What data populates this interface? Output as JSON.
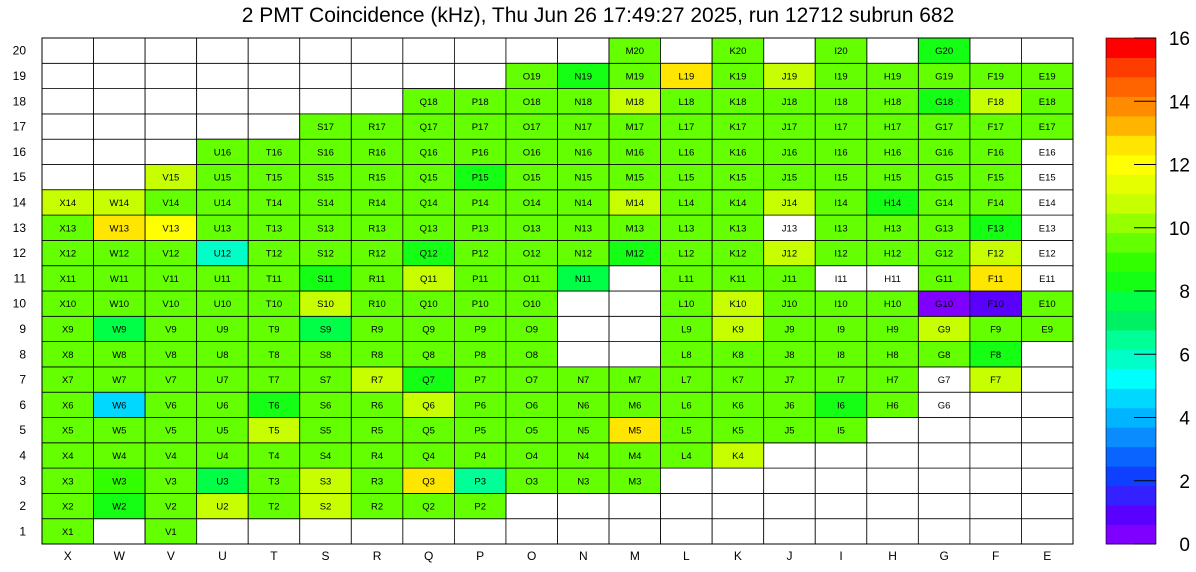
{
  "chart_data": {
    "type": "heatmap",
    "title": "2 PMT Coincidence (kHz), Thu Jun 26 17:49:27 2025, run 12712 subrun 682",
    "xlabel": "",
    "ylabel": "",
    "x_categories": [
      "X",
      "W",
      "V",
      "U",
      "T",
      "S",
      "R",
      "Q",
      "P",
      "O",
      "N",
      "M",
      "L",
      "K",
      "J",
      "I",
      "H",
      "G",
      "F",
      "E"
    ],
    "y_categories": [
      "1",
      "2",
      "3",
      "4",
      "5",
      "6",
      "7",
      "8",
      "9",
      "10",
      "11",
      "12",
      "13",
      "14",
      "15",
      "16",
      "17",
      "18",
      "19",
      "20"
    ],
    "zlim": [
      0,
      16
    ],
    "colorbar_ticks": [
      "0",
      "2",
      "4",
      "6",
      "8",
      "10",
      "12",
      "14",
      "16"
    ],
    "colorbar_colors": [
      "#7f00ff",
      "#5a00ff",
      "#3520ff",
      "#1040ff",
      "#0a64ff",
      "#0a8cff",
      "#00b4ff",
      "#00d8ff",
      "#00ffff",
      "#00ffc8",
      "#00ff96",
      "#00f064",
      "#00ff46",
      "#14ff14",
      "#32ff00",
      "#64ff00",
      "#96ff00",
      "#c8ff00",
      "#e6ff00",
      "#ffff00",
      "#ffe600",
      "#ffb400",
      "#ff8c00",
      "#ff6400",
      "#ff3c00",
      "#ff0000"
    ],
    "cells": [
      [
        "X1",
        1,
        9.5
      ],
      [
        "V1",
        1,
        9.5
      ],
      [
        "X2",
        2,
        9.5
      ],
      [
        "W2",
        2,
        8.2
      ],
      [
        "V2",
        2,
        9.5
      ],
      [
        "U2",
        2,
        10.7
      ],
      [
        "T2",
        2,
        9.5
      ],
      [
        "S2",
        2,
        10.7
      ],
      [
        "R2",
        2,
        9.5
      ],
      [
        "Q2",
        2,
        9.5
      ],
      [
        "P2",
        2,
        9.5
      ],
      [
        "X3",
        3,
        9.5
      ],
      [
        "W3",
        3,
        9
      ],
      [
        "V3",
        3,
        9.5
      ],
      [
        "U3",
        3,
        7.8
      ],
      [
        "T3",
        3,
        9.5
      ],
      [
        "S3",
        3,
        10.7
      ],
      [
        "R3",
        3,
        9.5
      ],
      [
        "Q3",
        3,
        12.5
      ],
      [
        "P3",
        3,
        6.6
      ],
      [
        "O3",
        3,
        9.5
      ],
      [
        "N3",
        3,
        9.5
      ],
      [
        "M3",
        3,
        9.5
      ],
      [
        "X4",
        4,
        9.5
      ],
      [
        "W4",
        4,
        9.5
      ],
      [
        "V4",
        4,
        9.5
      ],
      [
        "U4",
        4,
        9.5
      ],
      [
        "T4",
        4,
        9.5
      ],
      [
        "S4",
        4,
        9.5
      ],
      [
        "R4",
        4,
        9.5
      ],
      [
        "Q4",
        4,
        9.5
      ],
      [
        "P4",
        4,
        9.5
      ],
      [
        "O4",
        4,
        9.5
      ],
      [
        "N4",
        4,
        9.5
      ],
      [
        "M4",
        4,
        9.5
      ],
      [
        "L4",
        4,
        9.5
      ],
      [
        "K4",
        4,
        10.5
      ],
      [
        "X5",
        5,
        9.5
      ],
      [
        "W5",
        5,
        9.5
      ],
      [
        "V5",
        5,
        9.5
      ],
      [
        "U5",
        5,
        9.5
      ],
      [
        "T5",
        5,
        10.5
      ],
      [
        "S5",
        5,
        9.5
      ],
      [
        "R5",
        5,
        9.5
      ],
      [
        "Q5",
        5,
        9.5
      ],
      [
        "P5",
        5,
        9.5
      ],
      [
        "O5",
        5,
        9.5
      ],
      [
        "N5",
        5,
        9.5
      ],
      [
        "M5",
        5,
        12.8
      ],
      [
        "L5",
        5,
        9.5
      ],
      [
        "K5",
        5,
        9.5
      ],
      [
        "J5",
        5,
        9.5
      ],
      [
        "I5",
        5,
        9.5
      ],
      [
        "X6",
        6,
        9.5
      ],
      [
        "W6",
        6,
        4.5
      ],
      [
        "V6",
        6,
        9.5
      ],
      [
        "U6",
        6,
        9.5
      ],
      [
        "T6",
        6,
        8.2
      ],
      [
        "S6",
        6,
        9.5
      ],
      [
        "R6",
        6,
        9.5
      ],
      [
        "Q6",
        6,
        10.5
      ],
      [
        "P6",
        6,
        9.5
      ],
      [
        "O6",
        6,
        9.5
      ],
      [
        "N6",
        6,
        9.5
      ],
      [
        "M6",
        6,
        9.5
      ],
      [
        "L6",
        6,
        9.5
      ],
      [
        "K6",
        6,
        9.5
      ],
      [
        "J6",
        6,
        9.5
      ],
      [
        "I6",
        6,
        8.6
      ],
      [
        "H6",
        6,
        9.5
      ],
      [
        "G6",
        6,
        null
      ],
      [
        "X7",
        7,
        9.5
      ],
      [
        "W7",
        7,
        9.5
      ],
      [
        "V7",
        7,
        9.5
      ],
      [
        "U7",
        7,
        9.5
      ],
      [
        "T7",
        7,
        9.5
      ],
      [
        "S7",
        7,
        9.5
      ],
      [
        "R7",
        7,
        10.5
      ],
      [
        "Q7",
        7,
        8.6
      ],
      [
        "P7",
        7,
        9.5
      ],
      [
        "O7",
        7,
        9.5
      ],
      [
        "N7",
        7,
        9.5
      ],
      [
        "M7",
        7,
        9.5
      ],
      [
        "L7",
        7,
        9.5
      ],
      [
        "K7",
        7,
        9.5
      ],
      [
        "J7",
        7,
        9.5
      ],
      [
        "I7",
        7,
        9.5
      ],
      [
        "H7",
        7,
        9.5
      ],
      [
        "G7",
        7,
        null
      ],
      [
        "F7",
        7,
        10.5
      ],
      [
        "X8",
        8,
        9.5
      ],
      [
        "W8",
        8,
        9.5
      ],
      [
        "V8",
        8,
        9.5
      ],
      [
        "U8",
        8,
        9.5
      ],
      [
        "T8",
        8,
        9.5
      ],
      [
        "S8",
        8,
        9.5
      ],
      [
        "R8",
        8,
        9.5
      ],
      [
        "Q8",
        8,
        9.5
      ],
      [
        "P8",
        8,
        9.5
      ],
      [
        "O8",
        8,
        9.5
      ],
      [
        "L8",
        8,
        9.5
      ],
      [
        "K8",
        8,
        9.5
      ],
      [
        "J8",
        8,
        9.5
      ],
      [
        "I8",
        8,
        9.5
      ],
      [
        "H8",
        8,
        9.5
      ],
      [
        "G8",
        8,
        9.5
      ],
      [
        "F8",
        8,
        8.2
      ],
      [
        "X9",
        9,
        9.5
      ],
      [
        "W9",
        9,
        7.4
      ],
      [
        "V9",
        9,
        9.5
      ],
      [
        "U9",
        9,
        9.5
      ],
      [
        "T9",
        9,
        9.5
      ],
      [
        "S9",
        9,
        7.4
      ],
      [
        "R9",
        9,
        9.5
      ],
      [
        "Q9",
        9,
        9.5
      ],
      [
        "P9",
        9,
        9.5
      ],
      [
        "O9",
        9,
        9.5
      ],
      [
        "L9",
        9,
        9.5
      ],
      [
        "K9",
        9,
        10.5
      ],
      [
        "J9",
        9,
        9.5
      ],
      [
        "I9",
        9,
        9.5
      ],
      [
        "H9",
        9,
        9.5
      ],
      [
        "G9",
        9,
        10.5
      ],
      [
        "F9",
        9,
        9.5
      ],
      [
        "E9",
        9,
        9.5
      ],
      [
        "X10",
        10,
        9.5
      ],
      [
        "W10",
        10,
        9.5
      ],
      [
        "V10",
        10,
        9.5
      ],
      [
        "U10",
        10,
        9.5
      ],
      [
        "T10",
        10,
        9.5
      ],
      [
        "S10",
        10,
        10.5
      ],
      [
        "R10",
        10,
        9.5
      ],
      [
        "Q10",
        10,
        9.5
      ],
      [
        "P10",
        10,
        9.5
      ],
      [
        "O10",
        10,
        9.5
      ],
      [
        "L10",
        10,
        9.5
      ],
      [
        "K10",
        10,
        10.5
      ],
      [
        "J10",
        10,
        9.5
      ],
      [
        "I10",
        10,
        9.5
      ],
      [
        "H10",
        10,
        9.5
      ],
      [
        "G10",
        10,
        0.5
      ],
      [
        "F10",
        10,
        0.7
      ],
      [
        "E10",
        10,
        9.5
      ],
      [
        "X11",
        11,
        9.5
      ],
      [
        "W11",
        11,
        9.5
      ],
      [
        "V11",
        11,
        9.5
      ],
      [
        "U11",
        11,
        9.5
      ],
      [
        "T11",
        11,
        9.5
      ],
      [
        "S11",
        11,
        8.6
      ],
      [
        "R11",
        11,
        9.5
      ],
      [
        "Q11",
        11,
        11
      ],
      [
        "P11",
        11,
        9.5
      ],
      [
        "O11",
        11,
        9.5
      ],
      [
        "N11",
        11,
        7.6
      ],
      [
        "L11",
        11,
        9.5
      ],
      [
        "K11",
        11,
        9.5
      ],
      [
        "J11",
        11,
        9.5
      ],
      [
        "I11",
        11,
        null
      ],
      [
        "H11",
        11,
        null
      ],
      [
        "G11",
        11,
        9.5
      ],
      [
        "F11",
        11,
        12.4
      ],
      [
        "E11",
        11,
        null
      ],
      [
        "X12",
        12,
        9.5
      ],
      [
        "W12",
        12,
        9.5
      ],
      [
        "V12",
        12,
        9.5
      ],
      [
        "U12",
        12,
        6
      ],
      [
        "T12",
        12,
        9.5
      ],
      [
        "S12",
        12,
        9.5
      ],
      [
        "R12",
        12,
        9.5
      ],
      [
        "Q12",
        12,
        8.6
      ],
      [
        "P12",
        12,
        9.5
      ],
      [
        "O12",
        12,
        9.5
      ],
      [
        "N12",
        12,
        9.5
      ],
      [
        "M12",
        12,
        8.6
      ],
      [
        "L12",
        12,
        9.5
      ],
      [
        "K12",
        12,
        9.5
      ],
      [
        "J12",
        12,
        10.5
      ],
      [
        "I12",
        12,
        9.5
      ],
      [
        "H12",
        12,
        9.5
      ],
      [
        "G12",
        12,
        9.5
      ],
      [
        "F12",
        12,
        10.5
      ],
      [
        "E12",
        12,
        null
      ],
      [
        "X13",
        13,
        9.5
      ],
      [
        "W13",
        13,
        12.5
      ],
      [
        "V13",
        13,
        12.2
      ],
      [
        "U13",
        13,
        9.5
      ],
      [
        "T13",
        13,
        9.5
      ],
      [
        "S13",
        13,
        9.5
      ],
      [
        "R13",
        13,
        9.5
      ],
      [
        "Q13",
        13,
        9.5
      ],
      [
        "P13",
        13,
        9.5
      ],
      [
        "O13",
        13,
        9.5
      ],
      [
        "N13",
        13,
        9.5
      ],
      [
        "M13",
        13,
        9.5
      ],
      [
        "L13",
        13,
        9.5
      ],
      [
        "K13",
        13,
        9.5
      ],
      [
        "J13",
        13,
        null
      ],
      [
        "I13",
        13,
        9.5
      ],
      [
        "H13",
        13,
        9.5
      ],
      [
        "G13",
        13,
        9.5
      ],
      [
        "F13",
        13,
        8.4
      ],
      [
        "E13",
        13,
        null
      ],
      [
        "X14",
        14,
        10.5
      ],
      [
        "W14",
        14,
        10.5
      ],
      [
        "V14",
        14,
        9.5
      ],
      [
        "U14",
        14,
        9.5
      ],
      [
        "T14",
        14,
        9.5
      ],
      [
        "S14",
        14,
        9.5
      ],
      [
        "R14",
        14,
        9.5
      ],
      [
        "Q14",
        14,
        9.5
      ],
      [
        "P14",
        14,
        9.5
      ],
      [
        "O14",
        14,
        9.5
      ],
      [
        "N14",
        14,
        9.5
      ],
      [
        "M14",
        14,
        10.5
      ],
      [
        "L14",
        14,
        9.5
      ],
      [
        "K14",
        14,
        9.5
      ],
      [
        "J14",
        14,
        10.5
      ],
      [
        "I14",
        14,
        9.5
      ],
      [
        "H14",
        14,
        8.4
      ],
      [
        "G14",
        14,
        9.5
      ],
      [
        "F14",
        14,
        9.5
      ],
      [
        "E14",
        14,
        null
      ],
      [
        "V15",
        15,
        10.5
      ],
      [
        "U15",
        15,
        9.5
      ],
      [
        "T15",
        15,
        9.5
      ],
      [
        "S15",
        15,
        9.5
      ],
      [
        "R15",
        15,
        9.5
      ],
      [
        "Q15",
        15,
        9.5
      ],
      [
        "P15",
        15,
        8.6
      ],
      [
        "O15",
        15,
        9.5
      ],
      [
        "N15",
        15,
        9.5
      ],
      [
        "M15",
        15,
        9.5
      ],
      [
        "L15",
        15,
        9.5
      ],
      [
        "K15",
        15,
        9.5
      ],
      [
        "J15",
        15,
        9.5
      ],
      [
        "I15",
        15,
        9.5
      ],
      [
        "H15",
        15,
        9.5
      ],
      [
        "G15",
        15,
        9.5
      ],
      [
        "F15",
        15,
        9.5
      ],
      [
        "E15",
        15,
        null
      ],
      [
        "U16",
        16,
        9.5
      ],
      [
        "T16",
        16,
        9.5
      ],
      [
        "S16",
        16,
        9.5
      ],
      [
        "R16",
        16,
        9.5
      ],
      [
        "Q16",
        16,
        9.5
      ],
      [
        "P16",
        16,
        9.5
      ],
      [
        "O16",
        16,
        9.5
      ],
      [
        "N16",
        16,
        9.5
      ],
      [
        "M16",
        16,
        9.5
      ],
      [
        "L16",
        16,
        9.5
      ],
      [
        "K16",
        16,
        9.5
      ],
      [
        "J16",
        16,
        9.5
      ],
      [
        "I16",
        16,
        9.5
      ],
      [
        "H16",
        16,
        9.5
      ],
      [
        "G16",
        16,
        9.5
      ],
      [
        "F16",
        16,
        9.5
      ],
      [
        "E16",
        16,
        null
      ],
      [
        "S17",
        17,
        9.5
      ],
      [
        "R17",
        17,
        9.5
      ],
      [
        "Q17",
        17,
        9.5
      ],
      [
        "P17",
        17,
        9.5
      ],
      [
        "O17",
        17,
        9.5
      ],
      [
        "N17",
        17,
        9.5
      ],
      [
        "M17",
        17,
        9.5
      ],
      [
        "L17",
        17,
        9.5
      ],
      [
        "K17",
        17,
        9.5
      ],
      [
        "J17",
        17,
        9.5
      ],
      [
        "I17",
        17,
        9.5
      ],
      [
        "H17",
        17,
        9.5
      ],
      [
        "G17",
        17,
        9.5
      ],
      [
        "F17",
        17,
        9.5
      ],
      [
        "E17",
        17,
        9.5
      ],
      [
        "Q18",
        18,
        9.5
      ],
      [
        "P18",
        18,
        9.5
      ],
      [
        "O18",
        18,
        9.5
      ],
      [
        "N18",
        18,
        9.5
      ],
      [
        "M18",
        18,
        10.5
      ],
      [
        "L18",
        18,
        9.5
      ],
      [
        "K18",
        18,
        9.5
      ],
      [
        "J18",
        18,
        9.5
      ],
      [
        "I18",
        18,
        9.5
      ],
      [
        "H18",
        18,
        9.5
      ],
      [
        "G18",
        18,
        8.6
      ],
      [
        "F18",
        18,
        10.5
      ],
      [
        "E18",
        18,
        9.5
      ],
      [
        "O19",
        19,
        9.5
      ],
      [
        "N19",
        19,
        8.4
      ],
      [
        "M19",
        19,
        9.5
      ],
      [
        "L19",
        19,
        12.6
      ],
      [
        "K19",
        19,
        9.5
      ],
      [
        "J19",
        19,
        10.5
      ],
      [
        "I19",
        19,
        9.5
      ],
      [
        "H19",
        19,
        9.5
      ],
      [
        "G19",
        19,
        9.5
      ],
      [
        "F19",
        19,
        9.5
      ],
      [
        "E19",
        19,
        9.5
      ],
      [
        "M20",
        20,
        9.5
      ],
      [
        "K20",
        20,
        9.5
      ],
      [
        "I20",
        20,
        9.5
      ],
      [
        "G20",
        20,
        8.2
      ]
    ]
  }
}
